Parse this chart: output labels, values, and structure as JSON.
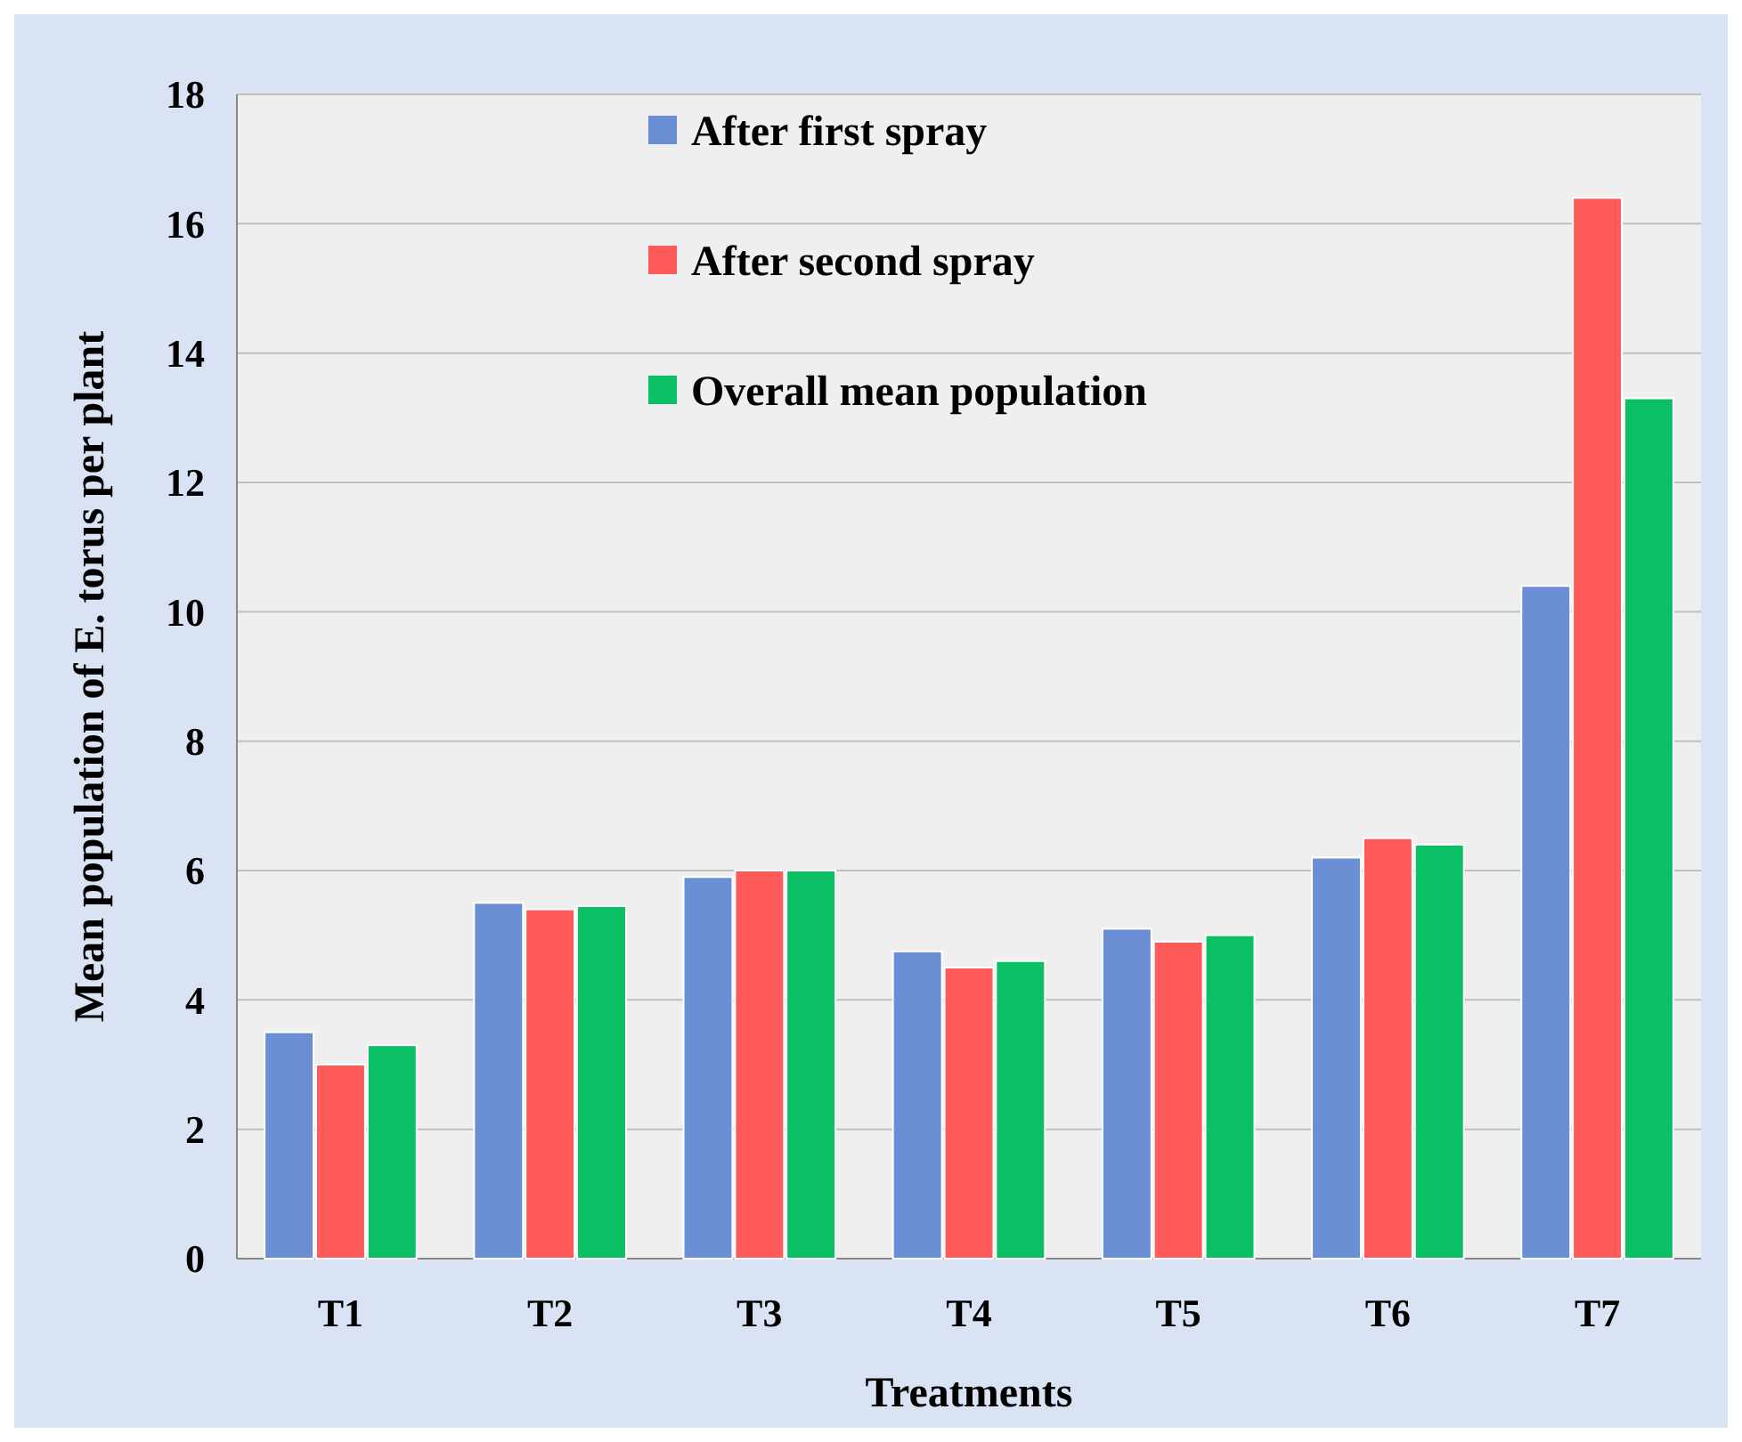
{
  "chart_data": {
    "type": "bar",
    "xlabel": "Treatments",
    "ylabel": "Mean population of E. torus per plant",
    "categories": [
      "T1",
      "T2",
      "T3",
      "T4",
      "T5",
      "T6",
      "T7"
    ],
    "series": [
      {
        "name": "After first spray",
        "color": "#6a8fd4",
        "values": [
          3.5,
          5.5,
          5.9,
          4.75,
          5.1,
          6.2,
          10.4
        ]
      },
      {
        "name": "After second spray",
        "color": "#fe5a5a",
        "values": [
          3.0,
          5.4,
          6.0,
          4.5,
          4.9,
          6.5,
          16.4
        ]
      },
      {
        "name": "Overall mean population",
        "color": "#0abf64",
        "values": [
          3.3,
          5.45,
          6.0,
          4.6,
          5.0,
          6.4,
          13.3
        ]
      }
    ],
    "ylim": [
      0,
      18
    ],
    "yticks": [
      0,
      2,
      4,
      6,
      8,
      10,
      12,
      14,
      16,
      18
    ],
    "grid": "y",
    "legend": "top"
  }
}
